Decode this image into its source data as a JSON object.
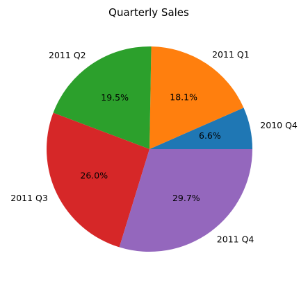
{
  "chart_data": {
    "type": "pie",
    "title": "Quarterly Sales",
    "start_angle_deg": 0,
    "direction": "counterclockwise",
    "slices": [
      {
        "label": "2010 Q4",
        "value": 6.6,
        "pct_text": "6.6%",
        "color": "#1f77b4"
      },
      {
        "label": "2011 Q1",
        "value": 18.1,
        "pct_text": "18.1%",
        "color": "#ff7f0e"
      },
      {
        "label": "2011 Q2",
        "value": 19.5,
        "pct_text": "19.5%",
        "color": "#2ca02c"
      },
      {
        "label": "2011 Q3",
        "value": 26.0,
        "pct_text": "26.0%",
        "color": "#d62728"
      },
      {
        "label": "2011 Q4",
        "value": 29.7,
        "pct_text": "29.7%",
        "color": "#9467bd"
      }
    ]
  }
}
